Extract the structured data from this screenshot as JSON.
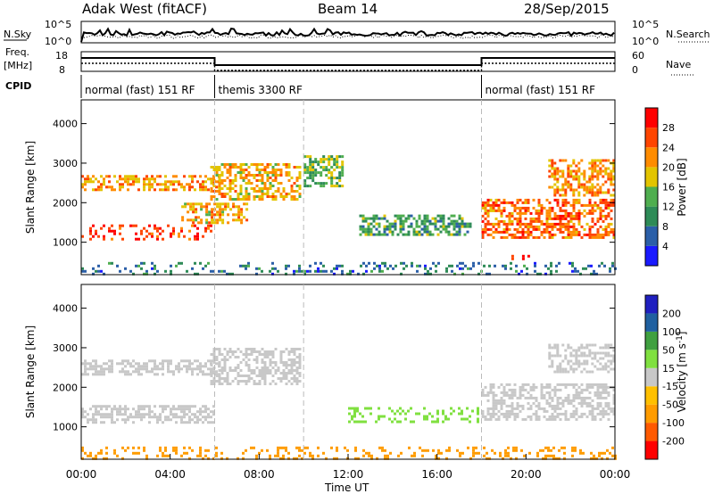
{
  "header": {
    "station": "Adak West (fitACF)",
    "beam": "Beam 14",
    "date": "28/Sep/2015"
  },
  "top_panels": {
    "nsky": {
      "label": "N.Sky",
      "ticks": [
        "10^5",
        "10^0"
      ]
    },
    "nsearch": {
      "label": "N.Search",
      "ticks": [
        "10^5",
        "10^0"
      ]
    },
    "freq": {
      "label_line1": "Freq.",
      "label_line2": "[MHz]",
      "ticks": [
        "18",
        "8"
      ]
    },
    "nave": {
      "label": "Nave",
      "ticks": [
        "60",
        "0"
      ]
    },
    "cpid": {
      "label": "CPID"
    }
  },
  "cpid_segments": [
    {
      "label": "normal (fast) 151 RF",
      "start_h": 0,
      "end_h": 6
    },
    {
      "label": "themis 3300 RF",
      "start_h": 6,
      "end_h": 18
    },
    {
      "label": "normal (fast) 151 RF",
      "start_h": 18,
      "end_h": 24
    }
  ],
  "x_axis": {
    "label": "Time UT",
    "ticks": [
      "00:00",
      "04:00",
      "08:00",
      "12:00",
      "16:00",
      "20:00",
      "00:00"
    ]
  },
  "y_axis": {
    "label": "Slant Range [km]",
    "ticks": [
      "1000",
      "2000",
      "3000",
      "4000"
    ]
  },
  "power_bar": {
    "label": "Power [dB]",
    "ticks": [
      "4",
      "8",
      "12",
      "16",
      "20",
      "24",
      "28"
    ],
    "colors": [
      "#1a1aff",
      "#2b5fa8",
      "#2e8b57",
      "#4fae4f",
      "#e3c400",
      "#ff8c00",
      "#ff4500",
      "#ff0000"
    ]
  },
  "velocity_bar": {
    "label": "Velocity [m s",
    "label_sup": "-1",
    "label_end": "]",
    "ticks": [
      "-200",
      "-100",
      "-50",
      "-15",
      "15",
      "50",
      "100",
      "200"
    ],
    "colors": [
      "#ff0000",
      "#ff5a00",
      "#ff9c00",
      "#ffc000",
      "#c8c8c8",
      "#80e040",
      "#40a040",
      "#2060a0",
      "#2020c0"
    ]
  },
  "chart_data": [
    {
      "type": "heatmap",
      "title": "Power",
      "xlabel": "Time UT",
      "ylabel": "Slant Range [km]",
      "xlim": [
        0,
        24
      ],
      "ylim": [
        180,
        4600
      ],
      "colorbar": "Power [dB]",
      "blobs": [
        {
          "t": [
            0,
            5.8
          ],
          "r": [
            1100,
            1450
          ],
          "db": 28
        },
        {
          "t": [
            4.5,
            7.5
          ],
          "r": [
            1500,
            2000
          ],
          "db": 20
        },
        {
          "t": [
            0,
            6.2
          ],
          "r": [
            2300,
            2700
          ],
          "db": 22
        },
        {
          "t": [
            5.8,
            9.8
          ],
          "r": [
            2100,
            3000
          ],
          "db": 20
        },
        {
          "t": [
            10,
            11.8
          ],
          "r": [
            2400,
            3200
          ],
          "db": 14
        },
        {
          "t": [
            12.5,
            17.5
          ],
          "r": [
            1200,
            1700
          ],
          "db": 12
        },
        {
          "t": [
            18,
            24
          ],
          "r": [
            1100,
            2100
          ],
          "db": 24
        },
        {
          "t": [
            21,
            24
          ],
          "r": [
            2200,
            3100
          ],
          "db": 22
        },
        {
          "t": [
            19.1,
            20.2
          ],
          "r": [
            560,
            680
          ],
          "db": 28
        },
        {
          "t": [
            0,
            24
          ],
          "r": [
            200,
            500
          ],
          "db": 8
        }
      ]
    },
    {
      "type": "heatmap",
      "title": "Velocity",
      "xlabel": "Time UT",
      "ylabel": "Slant Range [km]",
      "xlim": [
        0,
        24
      ],
      "ylim": [
        180,
        4600
      ],
      "colorbar": "Velocity [m s-1]",
      "blobs": [
        {
          "t": [
            0,
            6
          ],
          "r": [
            1100,
            1550
          ],
          "v": 0
        },
        {
          "t": [
            0,
            6.2
          ],
          "r": [
            2300,
            2700
          ],
          "v": 0
        },
        {
          "t": [
            5.8,
            9.8
          ],
          "r": [
            2100,
            3000
          ],
          "v": 0
        },
        {
          "t": [
            12,
            17.8
          ],
          "r": [
            1150,
            1500
          ],
          "v": 40
        },
        {
          "t": [
            18,
            24
          ],
          "r": [
            1200,
            2100
          ],
          "v": 0
        },
        {
          "t": [
            21,
            24
          ],
          "r": [
            2400,
            3100
          ],
          "v": 0
        },
        {
          "t": [
            0,
            24
          ],
          "r": [
            200,
            500
          ],
          "v": -60
        }
      ]
    }
  ]
}
